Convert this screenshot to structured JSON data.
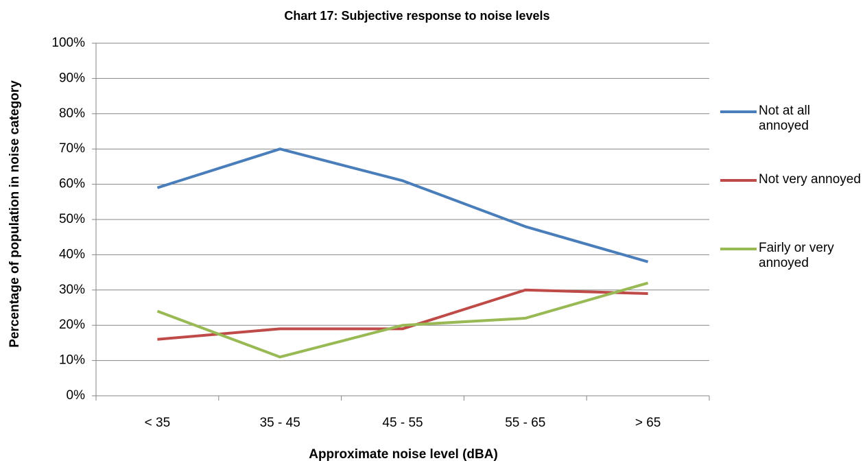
{
  "chart_data": {
    "type": "line",
    "title": "Chart 17: Subjective response to noise levels",
    "x_label": "Approximate noise level (dBA)",
    "y_label": "Percentage of population in noise category",
    "categories": [
      "< 35",
      "35 - 45",
      "45 - 55",
      "55 - 65",
      "> 65"
    ],
    "series": [
      {
        "name": "Not at all annoyed",
        "color": "#4a7ebb",
        "values": [
          59,
          70,
          61,
          48,
          38
        ]
      },
      {
        "name": "Not very annoyed",
        "color": "#be4b48",
        "values": [
          16,
          19,
          19,
          30,
          29
        ]
      },
      {
        "name": "Fairly or very annoyed",
        "color": "#98b954",
        "values": [
          24,
          11,
          20,
          22,
          32
        ]
      }
    ],
    "ylim": [
      0,
      100
    ],
    "yticks": [
      {
        "value": 0,
        "label": "0%"
      },
      {
        "value": 10,
        "label": "10%"
      },
      {
        "value": 20,
        "label": "20%"
      },
      {
        "value": 30,
        "label": "30%"
      },
      {
        "value": 40,
        "label": "40%"
      },
      {
        "value": 50,
        "label": "50%"
      },
      {
        "value": 60,
        "label": "60%"
      },
      {
        "value": 70,
        "label": "70%"
      },
      {
        "value": 80,
        "label": "80%"
      },
      {
        "value": 90,
        "label": "90%"
      },
      {
        "value": 100,
        "label": "100%"
      }
    ],
    "grid": true,
    "legend": "right"
  }
}
